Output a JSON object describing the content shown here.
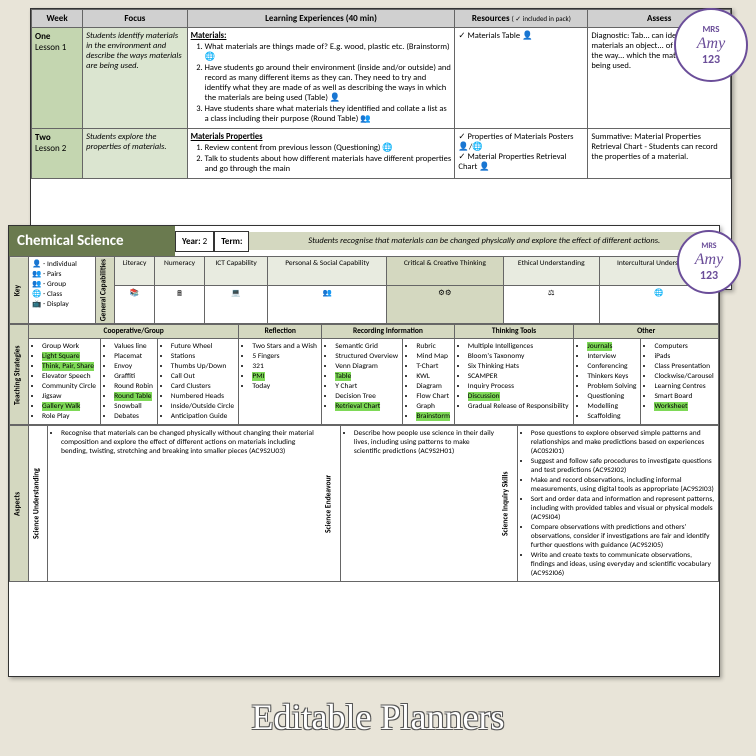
{
  "logo": {
    "line1": "MRS",
    "line2": "Amy",
    "line3": "123"
  },
  "title": "Editable Planners",
  "table1": {
    "headers": [
      "Week",
      "Focus",
      "Learning Experiences (40 min)",
      "Resources",
      "Assess"
    ],
    "res_note": "( ✓ included in pack)",
    "rows": [
      {
        "week": "One",
        "lesson": "Lesson 1",
        "focus": "Students identify materials in the environment and describe the ways materials are being used.",
        "le_title": "Materials:",
        "le": [
          "What materials are things made of? E.g. wood, plastic etc. (Brainstorm) 🌐",
          "Have students go around their environment (inside and/or outside) and record as many different items as they can. They need to try and identify what they are made of as well as describing the ways in which the materials are being used (Table) 👤",
          "Have students share what materials they identified and collate a list as a class including their purpose (Round Table) 👥"
        ],
        "res": [
          "Materials Table 👤"
        ],
        "assess": "Diagnostic: Tab... can identify what materials an object... of and describe the way... which the materials are being used."
      },
      {
        "week": "Two",
        "lesson": "Lesson 2",
        "focus": "Students explore the properties of materials.",
        "le_title": "Materials Properties",
        "le": [
          "Review content from previous lesson (Questioning) 🌐",
          "Talk to students about how different materials have different properties and go through the main"
        ],
        "res": [
          "Properties of Materials Posters 👤/🌐",
          "Material Properties Retrieval Chart 👤"
        ],
        "assess": "Summative: Material Properties Retrieval Chart - Students can record the properties of a material."
      }
    ]
  },
  "page2": {
    "subject": "Chemical Science",
    "year_lbl": "Year:",
    "year": "2",
    "term_lbl": "Term:",
    "desc": "Students recognise that materials can be changed physically and explore the effect of different actions.",
    "key_lbl": "Key",
    "gc_lbl": "General Capabilities",
    "key": [
      "👤 - Individual",
      "👥 - Pairs",
      "👥 - Group",
      "🌐 - Class",
      "📺 - Display"
    ],
    "caps": [
      "Literacy",
      "Numeracy",
      "ICT Capability",
      "Personal & Social Capability",
      "Critical & Creative Thinking",
      "Ethical Understanding",
      "Intercultural Understanding"
    ],
    "icons": [
      "📚",
      "🖩",
      "💻",
      "👥",
      "⚙⚙",
      "⚖",
      "🌐"
    ],
    "ts_lbl": "Teaching Strategies",
    "ts_headers": [
      "Cooperative/Group",
      "Reflection",
      "Recording Information",
      "Thinking Tools",
      "Other"
    ],
    "ts": {
      "cg": [
        [
          "Group Work",
          "Light Square",
          "Think, Pair, Share",
          "Elevator Speech",
          "Community Circle",
          "Jigsaw",
          "Gallery Walk",
          "Role Play"
        ],
        [
          "Values line",
          "Placemat",
          "Envoy",
          "Graffiti",
          "Round Robin",
          "Round Table",
          "Snowball",
          "Debates"
        ],
        [
          "Future Wheel",
          "Stations",
          "Thumbs Up/Down",
          "Call Out",
          "Card Clusters",
          "Numbered Heads",
          "Inside/Outside Circle",
          "Anticipation Guide"
        ]
      ],
      "hl_cg": [
        "Light Square",
        "Think, Pair, Share",
        "Gallery Walk",
        "Round Table"
      ],
      "ref": [
        "Two Stars and a Wish",
        "5 Fingers",
        "321",
        "PMI",
        "Today"
      ],
      "hl_ref": [
        "PMI"
      ],
      "rec": [
        [
          "Semantic Grid",
          "Structured Overview",
          "Venn Diagram",
          "Table",
          "Y Chart",
          "Decision Tree",
          "Retrieval Chart"
        ],
        [
          "Rubric",
          "Mind Map",
          "T-Chart",
          "KWL",
          "Diagram",
          "Flow Chart",
          "Graph",
          "Brainstorm"
        ]
      ],
      "hl_rec": [
        "Table",
        "Retrieval Chart",
        "Brainstorm"
      ],
      "tt": [
        "Multiple Intelligences",
        "Bloom's Taxonomy",
        "Six Thinking Hats",
        "SCAMPER",
        "Inquiry Process",
        "Discussion",
        "Gradual Release of Responsibility"
      ],
      "hl_tt": [
        "Discussion"
      ],
      "ot": [
        [
          "Journals",
          "Interview",
          "Conferencing",
          "Thinkers Keys",
          "Problem Solving",
          "Questioning",
          "Modelling",
          "Scaffolding"
        ],
        [
          "Computers",
          "iPads",
          "Class Presentation",
          "Clockwise/Carousel",
          "Learning Centres",
          "Smart Board",
          "Worksheet"
        ]
      ],
      "hl_ot": [
        "Journals",
        "Worksheet"
      ]
    },
    "asp_lbl": "Aspects",
    "asp": [
      {
        "v": "Science Understanding",
        "items": [
          "Recognise that materials can be changed physically without changing their material composition and explore the effect of different actions on materials including bending, twisting, stretching and breaking into smaller pieces (AC9S2U03)"
        ]
      },
      {
        "v": "Science Endeavour",
        "items": [
          "Describe how people use science in their daily lives, including using patterns to make scientific predictions (AC9S2H01)"
        ]
      },
      {
        "v": "Science Inquiry Skills",
        "items": [
          "Pose questions to explore observed simple patterns and relationships and make predictions based on experiences (AC0S2I01)",
          "Suggest and follow safe procedures to investigate questions and test predictions (AC9S2I02)",
          "Make and record observations, including informal measurements, using digital tools as appropriate (AC9S2I03)",
          "Sort and order data and information and represent patterns, including with provided tables and visual or physical models (AC9SI04)",
          "Compare observations with predictions and others' observations, consider if investigations are fair and identify further questions with guidance (AC9S2I05)",
          "Write and create texts to communicate observations, findings and ideas, using everyday and scientific vocabulary (AC9S2I06)"
        ]
      }
    ]
  }
}
